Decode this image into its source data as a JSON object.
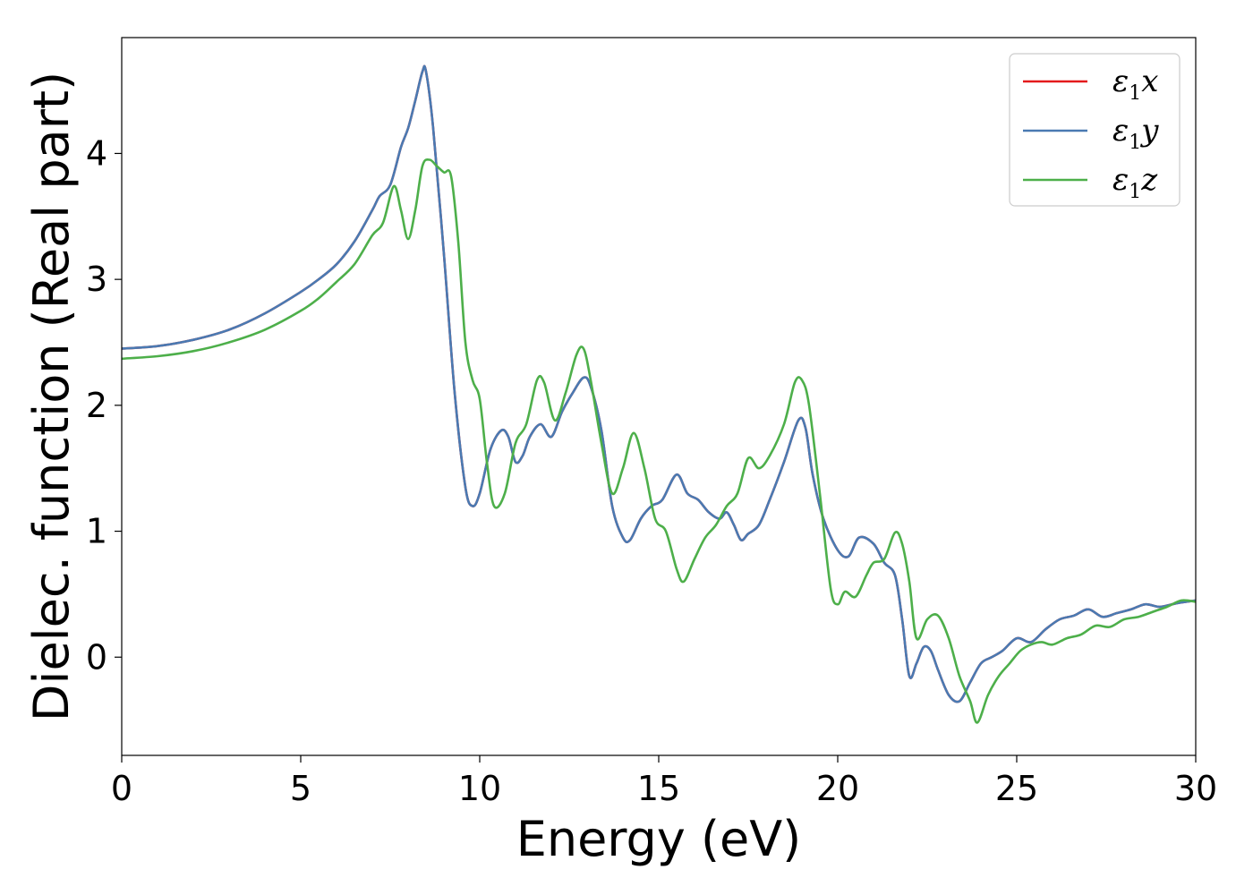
{
  "chart_data": {
    "type": "line",
    "title": "",
    "xlabel": "Energy (eV)",
    "ylabel": "Dielec. function (Real part)",
    "xlim": [
      0,
      30
    ],
    "ylim": [
      -0.78,
      4.92
    ],
    "xticks": [
      0,
      5,
      10,
      15,
      20,
      25,
      30
    ],
    "xtick_labels": [
      "0",
      "5",
      "10",
      "15",
      "20",
      "25",
      "30"
    ],
    "yticks": [
      0,
      1,
      2,
      3,
      4
    ],
    "ytick_labels": [
      "0",
      "1",
      "2",
      "3",
      "4"
    ],
    "grid": false,
    "legend_position": "top-right",
    "series": [
      {
        "name": "ε1x",
        "legend": {
          "base": "ε",
          "sub": "1",
          "comp": "x"
        },
        "color": "#e41a1c",
        "x": [
          0,
          1,
          2,
          3,
          4,
          5,
          5.5,
          6,
          6.5,
          7,
          7.2,
          7.5,
          7.8,
          8,
          8.2,
          8.4,
          8.5,
          8.7,
          9,
          9.3,
          9.6,
          9.8,
          10,
          10.3,
          10.6,
          10.8,
          11,
          11.2,
          11.4,
          11.7,
          12,
          12.3,
          12.6,
          12.9,
          13.1,
          13.4,
          13.7,
          14,
          14.2,
          14.5,
          14.8,
          15.1,
          15.5,
          15.8,
          16.1,
          16.4,
          16.7,
          16.9,
          17.1,
          17.3,
          17.5,
          17.8,
          18.1,
          18.5,
          18.9,
          19.1,
          19.3,
          19.6,
          20,
          20.3,
          20.6,
          21,
          21.3,
          21.6,
          21.8,
          22,
          22.2,
          22.4,
          22.6,
          22.8,
          23.1,
          23.4,
          23.7,
          24,
          24.3,
          24.6,
          25,
          25.4,
          25.8,
          26.2,
          26.6,
          27,
          27.4,
          27.8,
          28.2,
          28.6,
          29,
          29.5,
          30
        ],
        "y": [
          2.45,
          2.47,
          2.52,
          2.6,
          2.73,
          2.9,
          3.0,
          3.12,
          3.3,
          3.55,
          3.66,
          3.75,
          4.05,
          4.2,
          4.42,
          4.65,
          4.65,
          4.2,
          3.2,
          2.1,
          1.35,
          1.2,
          1.3,
          1.65,
          1.8,
          1.75,
          1.55,
          1.6,
          1.75,
          1.85,
          1.75,
          1.95,
          2.1,
          2.22,
          2.15,
          1.8,
          1.2,
          0.95,
          0.93,
          1.1,
          1.2,
          1.25,
          1.45,
          1.3,
          1.25,
          1.15,
          1.1,
          1.15,
          1.05,
          0.93,
          0.98,
          1.05,
          1.25,
          1.55,
          1.88,
          1.82,
          1.45,
          1.1,
          0.85,
          0.8,
          0.95,
          0.9,
          0.75,
          0.65,
          0.3,
          -0.15,
          -0.05,
          0.08,
          0.05,
          -0.1,
          -0.3,
          -0.35,
          -0.2,
          -0.05,
          0.0,
          0.05,
          0.15,
          0.12,
          0.22,
          0.3,
          0.33,
          0.38,
          0.32,
          0.35,
          0.38,
          0.42,
          0.4,
          0.43,
          0.45
        ]
      },
      {
        "name": "ε1y",
        "legend": {
          "base": "ε",
          "sub": "1",
          "comp": "y"
        },
        "color": "#4a7ab2",
        "x": [
          0,
          1,
          2,
          3,
          4,
          5,
          5.5,
          6,
          6.5,
          7,
          7.2,
          7.5,
          7.8,
          8,
          8.2,
          8.4,
          8.5,
          8.7,
          9,
          9.3,
          9.6,
          9.8,
          10,
          10.3,
          10.6,
          10.8,
          11,
          11.2,
          11.4,
          11.7,
          12,
          12.3,
          12.6,
          12.9,
          13.1,
          13.4,
          13.7,
          14,
          14.2,
          14.5,
          14.8,
          15.1,
          15.5,
          15.8,
          16.1,
          16.4,
          16.7,
          16.9,
          17.1,
          17.3,
          17.5,
          17.8,
          18.1,
          18.5,
          18.9,
          19.1,
          19.3,
          19.6,
          20,
          20.3,
          20.6,
          21,
          21.3,
          21.6,
          21.8,
          22,
          22.2,
          22.4,
          22.6,
          22.8,
          23.1,
          23.4,
          23.7,
          24,
          24.3,
          24.6,
          25,
          25.4,
          25.8,
          26.2,
          26.6,
          27,
          27.4,
          27.8,
          28.2,
          28.6,
          29,
          29.5,
          30
        ],
        "y": [
          2.45,
          2.47,
          2.52,
          2.6,
          2.73,
          2.9,
          3.0,
          3.12,
          3.3,
          3.55,
          3.66,
          3.75,
          4.05,
          4.2,
          4.42,
          4.65,
          4.65,
          4.2,
          3.2,
          2.1,
          1.35,
          1.2,
          1.3,
          1.65,
          1.8,
          1.75,
          1.55,
          1.6,
          1.75,
          1.85,
          1.75,
          1.95,
          2.1,
          2.22,
          2.15,
          1.8,
          1.2,
          0.95,
          0.93,
          1.1,
          1.2,
          1.25,
          1.45,
          1.3,
          1.25,
          1.15,
          1.1,
          1.15,
          1.05,
          0.93,
          0.98,
          1.05,
          1.25,
          1.55,
          1.88,
          1.82,
          1.45,
          1.1,
          0.85,
          0.8,
          0.95,
          0.9,
          0.75,
          0.65,
          0.3,
          -0.15,
          -0.05,
          0.08,
          0.05,
          -0.1,
          -0.3,
          -0.35,
          -0.2,
          -0.05,
          0.0,
          0.05,
          0.15,
          0.12,
          0.22,
          0.3,
          0.33,
          0.38,
          0.32,
          0.35,
          0.38,
          0.42,
          0.4,
          0.43,
          0.45
        ]
      },
      {
        "name": "ε1z",
        "legend": {
          "base": "ε",
          "sub": "1",
          "comp": "z"
        },
        "color": "#4daf4a",
        "x": [
          0,
          1,
          2,
          3,
          4,
          5,
          5.5,
          6,
          6.5,
          7,
          7.3,
          7.6,
          7.8,
          8,
          8.2,
          8.4,
          8.6,
          8.8,
          9,
          9.2,
          9.4,
          9.6,
          9.8,
          10,
          10.2,
          10.4,
          10.7,
          11,
          11.3,
          11.6,
          11.8,
          12.1,
          12.4,
          12.7,
          12.9,
          13.1,
          13.4,
          13.7,
          14,
          14.3,
          14.6,
          14.9,
          15.2,
          15.5,
          15.7,
          16,
          16.3,
          16.6,
          16.9,
          17.2,
          17.5,
          17.8,
          18.1,
          18.5,
          18.8,
          19.0,
          19.2,
          19.5,
          19.8,
          20,
          20.2,
          20.5,
          20.8,
          21,
          21.3,
          21.6,
          21.8,
          22,
          22.2,
          22.5,
          22.8,
          23.1,
          23.4,
          23.7,
          23.9,
          24.2,
          24.5,
          24.8,
          25.1,
          25.4,
          25.7,
          26,
          26.4,
          26.8,
          27.2,
          27.6,
          28,
          28.4,
          28.8,
          29.2,
          29.6,
          30
        ],
        "y": [
          2.37,
          2.39,
          2.43,
          2.5,
          2.6,
          2.75,
          2.85,
          2.98,
          3.12,
          3.35,
          3.45,
          3.74,
          3.55,
          3.32,
          3.55,
          3.9,
          3.95,
          3.9,
          3.85,
          3.82,
          3.3,
          2.5,
          2.2,
          2.05,
          1.55,
          1.2,
          1.3,
          1.7,
          1.85,
          2.2,
          2.18,
          1.88,
          2.1,
          2.4,
          2.45,
          2.2,
          1.7,
          1.3,
          1.5,
          1.78,
          1.5,
          1.1,
          1.0,
          0.7,
          0.6,
          0.78,
          0.95,
          1.05,
          1.2,
          1.3,
          1.58,
          1.5,
          1.6,
          1.85,
          2.18,
          2.2,
          2.0,
          1.3,
          0.55,
          0.42,
          0.52,
          0.48,
          0.65,
          0.75,
          0.78,
          0.99,
          0.9,
          0.6,
          0.15,
          0.3,
          0.33,
          0.15,
          -0.15,
          -0.35,
          -0.52,
          -0.3,
          -0.15,
          -0.05,
          0.05,
          0.1,
          0.12,
          0.1,
          0.15,
          0.18,
          0.25,
          0.24,
          0.3,
          0.32,
          0.36,
          0.4,
          0.45,
          0.44
        ]
      }
    ]
  }
}
